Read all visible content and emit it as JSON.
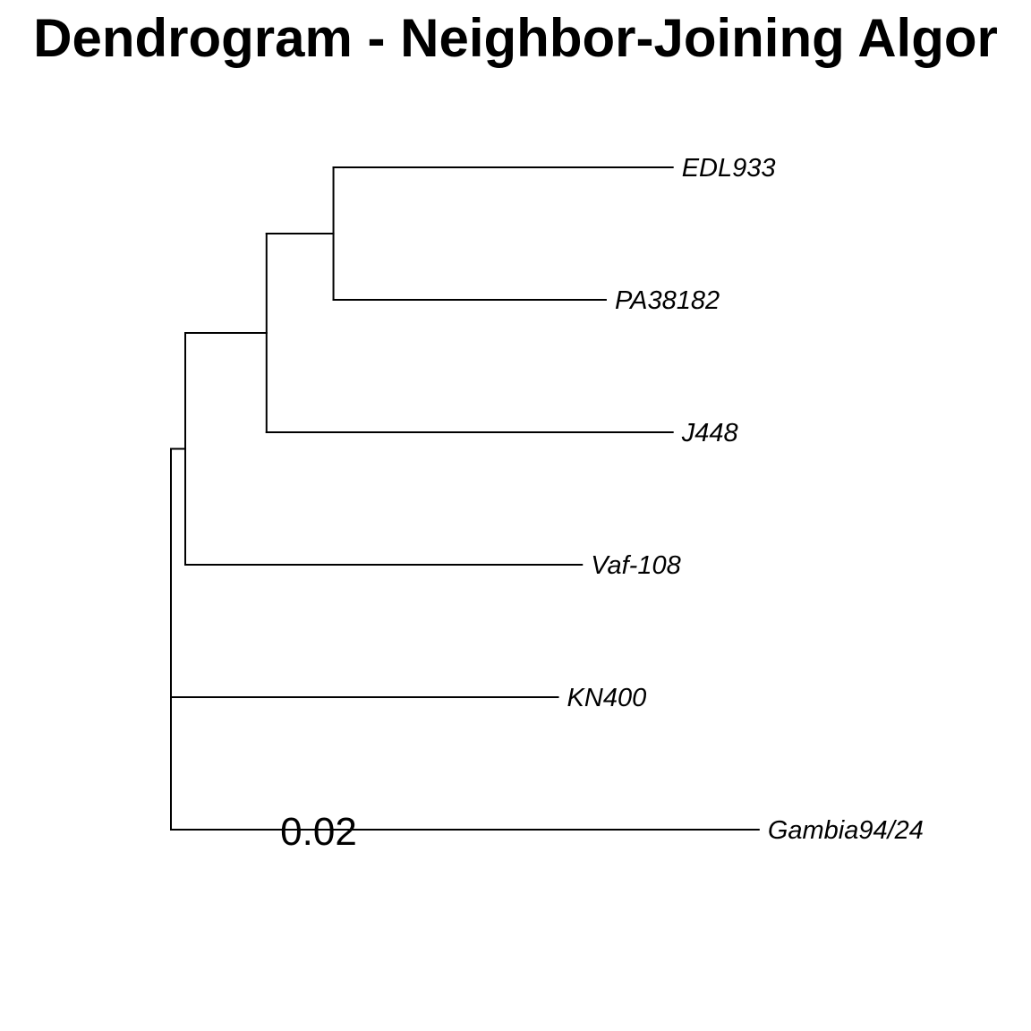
{
  "title": "Dendrogram - Neighbor-Joining Algor",
  "tree": {
    "type": "phylogram",
    "method": "Neighbor-Joining",
    "tips": [
      "EDL933",
      "PA38182",
      "J448",
      "Vaf-108",
      "KN400",
      "Gambia94/24"
    ],
    "scale_bar": {
      "label": "0.02",
      "length": 0.02
    },
    "nodes": [
      {
        "id": "root",
        "parent": null,
        "branch_length": 0
      },
      {
        "id": "n1",
        "parent": "root",
        "branch_length": 0.003
      },
      {
        "id": "n2",
        "parent": "n1",
        "branch_length": 0.017
      },
      {
        "id": "n3",
        "parent": "n2",
        "branch_length": 0.014
      },
      {
        "id": "EDL933",
        "parent": "n3",
        "branch_length": 0.071
      },
      {
        "id": "PA38182",
        "parent": "n3",
        "branch_length": 0.057
      },
      {
        "id": "J448",
        "parent": "n2",
        "branch_length": 0.085
      },
      {
        "id": "Vaf-108",
        "parent": "n1",
        "branch_length": 0.083
      },
      {
        "id": "KN400",
        "parent": "root",
        "branch_length": 0.081
      },
      {
        "id": "Gambia94/24",
        "parent": "root",
        "branch_length": 0.123
      }
    ]
  }
}
